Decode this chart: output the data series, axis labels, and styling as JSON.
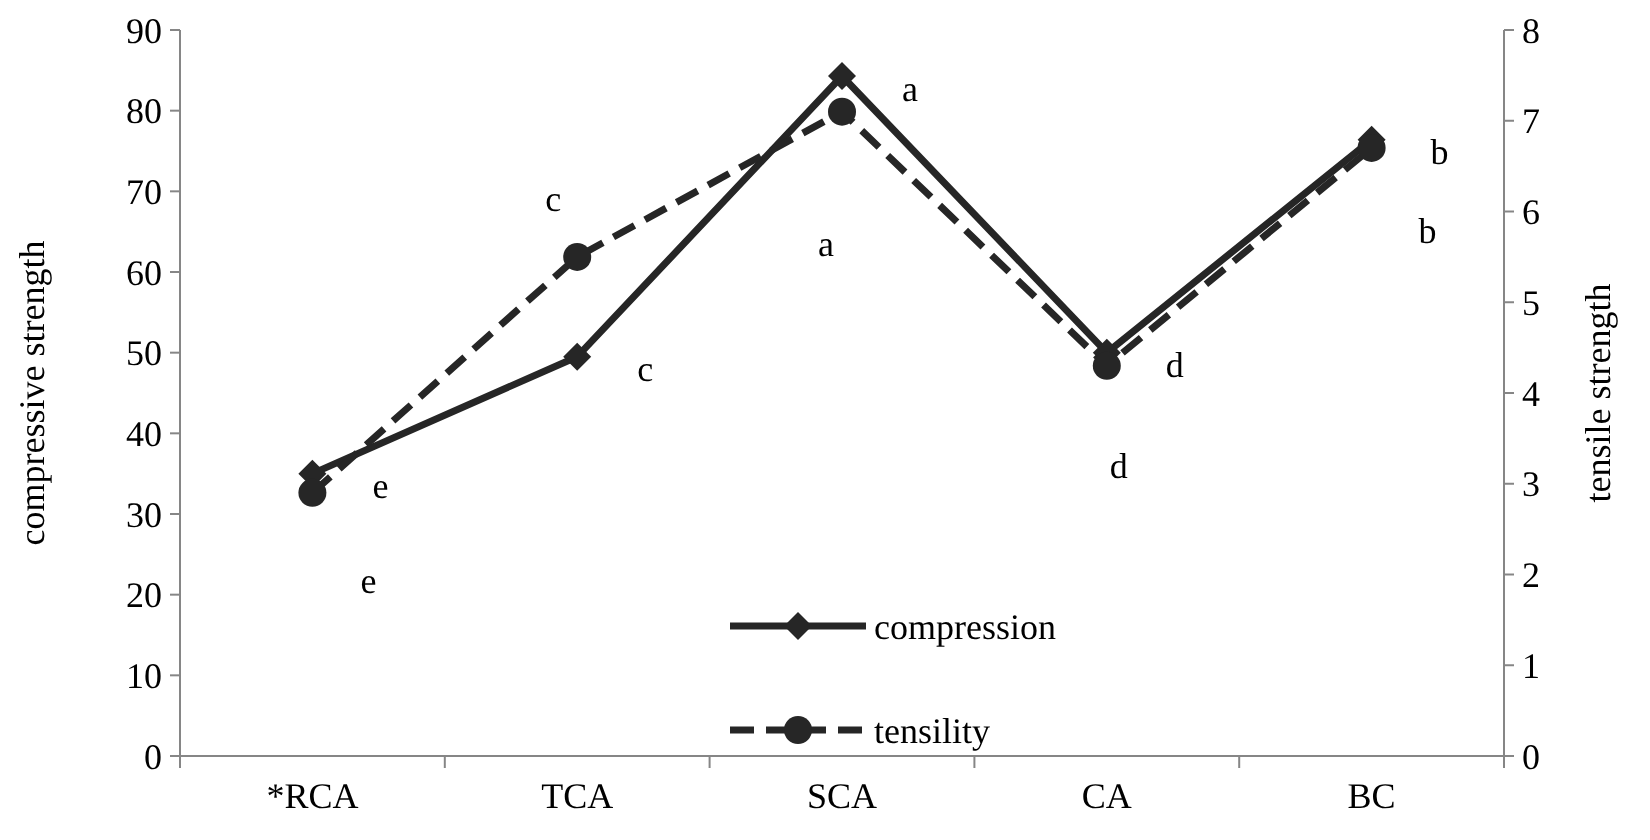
{
  "chart_data": {
    "type": "line",
    "ylabel": "compressive strength",
    "y2label": "tensile strength",
    "categories": [
      "*RCA",
      "TCA",
      "SCA",
      "CA",
      "BC"
    ],
    "series": [
      {
        "name": "compression",
        "color": "#262626",
        "values": [
          35,
          49.5,
          84.3,
          50,
          76.4
        ],
        "value_labels": [
          "e",
          "c",
          "a",
          "d",
          "b"
        ],
        "marker": "diamond",
        "line_style": "solid"
      },
      {
        "name": "tensility",
        "color": "#262626",
        "values": [
          2.9,
          5.5,
          7.1,
          4.3,
          6.7
        ],
        "value_labels": [
          "e",
          "c",
          "a",
          "d",
          "b"
        ],
        "marker": "circle",
        "line_style": "dashed",
        "axis": "y2"
      }
    ],
    "ylim": [
      0,
      90
    ],
    "yticks": [
      0,
      10,
      20,
      30,
      40,
      50,
      60,
      70,
      80,
      90
    ],
    "y2lim": [
      0,
      8
    ],
    "y2ticks": [
      0,
      1,
      2,
      3,
      4,
      5,
      6,
      7,
      8
    ],
    "legend": "bottom",
    "grid": false
  }
}
